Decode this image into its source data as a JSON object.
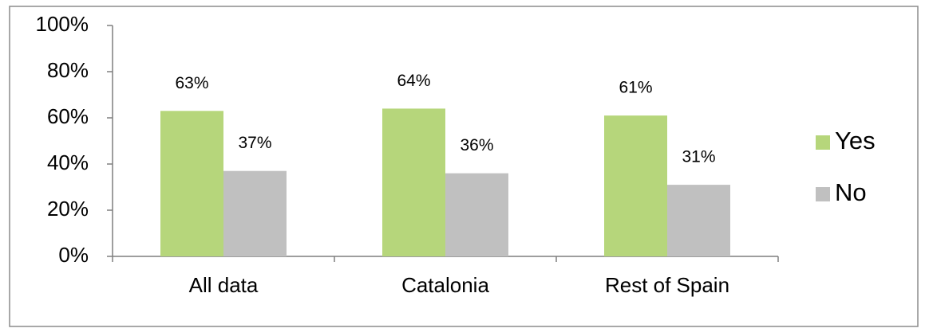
{
  "chart_data": {
    "type": "bar",
    "categories": [
      "All data",
      "Catalonia",
      "Rest of Spain"
    ],
    "series": [
      {
        "name": "Yes",
        "color": "#b6d67b",
        "values": [
          63,
          64,
          61
        ],
        "value_labels": [
          "63%",
          "64%",
          "61%"
        ]
      },
      {
        "name": "No",
        "color": "#c0c0c0",
        "values": [
          37,
          36,
          31
        ],
        "value_labels": [
          "37%",
          "36%",
          "31%"
        ]
      }
    ],
    "ylim": [
      0,
      100
    ],
    "yticks": [
      {
        "value": 0,
        "label": "0%"
      },
      {
        "value": 20,
        "label": "20%"
      },
      {
        "value": 40,
        "label": "40%"
      },
      {
        "value": 60,
        "label": "60%"
      },
      {
        "value": 80,
        "label": "80%"
      },
      {
        "value": 100,
        "label": "100%"
      }
    ],
    "grid": false,
    "legend": "right"
  }
}
